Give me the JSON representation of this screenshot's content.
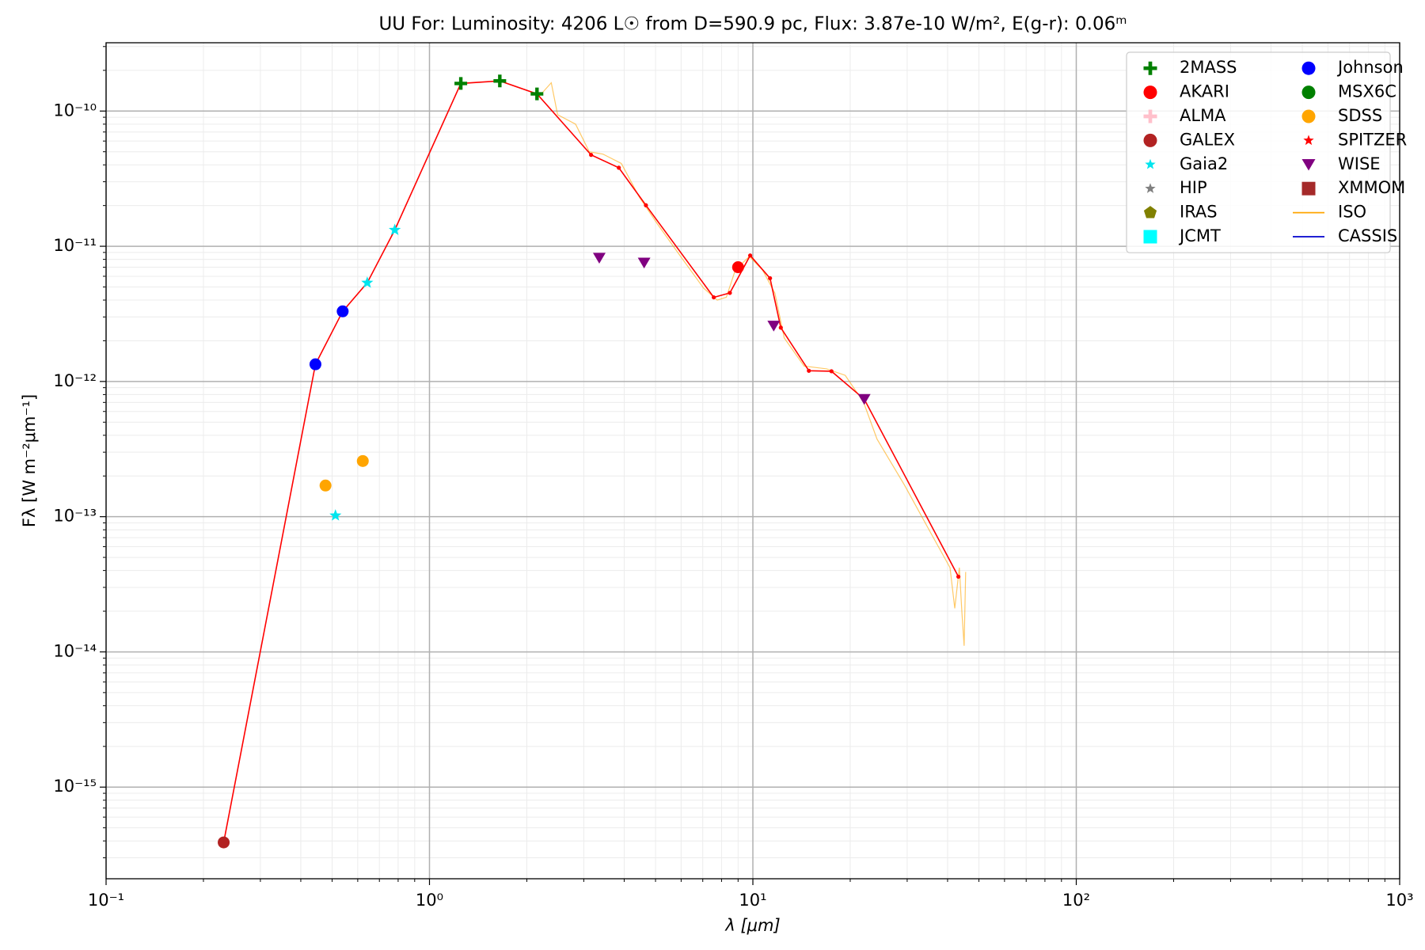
{
  "chart_data": {
    "type": "scatter",
    "title": "UU For:  Luminosity: 4206 L☉ from D=590.9 pc, Flux: 3.87e-10 W/m², E(g-r): 0.06ᵐ",
    "xlabel": "λ [μm]",
    "ylabel": "Fλ [W m⁻²μm⁻¹]",
    "xscale": "log",
    "yscale": "log",
    "xlim": [
      0.1,
      1000
    ],
    "ylim": [
      2.1e-16,
      3.2e-10
    ],
    "xticks": [
      {
        "value": 0.1,
        "label": "10⁻¹"
      },
      {
        "value": 1,
        "label": "10⁰"
      },
      {
        "value": 10,
        "label": "10¹"
      },
      {
        "value": 100,
        "label": "10²"
      },
      {
        "value": 1000,
        "label": "10³"
      }
    ],
    "yticks": [
      {
        "value": 1e-15,
        "label": "10⁻¹⁵"
      },
      {
        "value": 1e-14,
        "label": "10⁻¹⁴"
      },
      {
        "value": 1e-13,
        "label": "10⁻¹³"
      },
      {
        "value": 1e-12,
        "label": "10⁻¹²"
      },
      {
        "value": 1e-11,
        "label": "10⁻¹¹"
      },
      {
        "value": 1e-10,
        "label": "10⁻¹⁰"
      }
    ],
    "grid": true,
    "legend_position": "upper right",
    "series": [
      {
        "color": "#ffa500",
        "marker": "line",
        "name": "ISO",
        "x": [
          2.18,
          2.38,
          2.49,
          2.83,
          3.12,
          3.44,
          3.92,
          4.46,
          5.08,
          5.98,
          7.04,
          7.76,
          8.28,
          8.83,
          9.75,
          10.7,
          11.7,
          12.5,
          14.4,
          16.9,
          19.3,
          22.0,
          24.2,
          29.4,
          35.8,
          40.7,
          42.1,
          43.5,
          44.3,
          45.0,
          45.5
        ],
        "values": [
          1.28e-10,
          1.62e-10,
          9.4e-11,
          8e-11,
          5e-11,
          4.8e-11,
          4.1e-11,
          2.3e-11,
          1.45e-11,
          8.4e-12,
          4.9e-12,
          4e-12,
          4.2e-12,
          6.7e-12,
          8.4e-12,
          6.7e-12,
          4.5e-12,
          2.1e-12,
          1.3e-12,
          1.24e-12,
          1.11e-12,
          7e-13,
          3.75e-13,
          1.72e-13,
          7.3e-14,
          4.2e-14,
          2.1e-14,
          4.2e-14,
          1.95e-14,
          1.11e-14,
          3.9e-14
        ]
      },
      {
        "color": "#0000cd",
        "marker": "line",
        "name": "CASSIS",
        "x": [],
        "values": []
      },
      {
        "color": "#ff0000",
        "marker": "dotline",
        "x": [
          0.231,
          0.444,
          0.539,
          0.642,
          0.781,
          1.25,
          1.65,
          2.15,
          3.16,
          3.85,
          4.67,
          7.57,
          8.49,
          9.81,
          11.3,
          12.2,
          14.9,
          17.5,
          22.1,
          43.2
        ],
        "values": [
          3.9e-16,
          1.34e-12,
          3.3e-12,
          5.37e-12,
          1.32e-11,
          1.6e-10,
          1.67e-10,
          1.34e-10,
          4.74e-11,
          3.81e-11,
          2.01e-11,
          4.19e-12,
          4.52e-12,
          8.55e-12,
          5.8e-12,
          2.5e-12,
          1.2e-12,
          1.19e-12,
          7.4e-13,
          3.6e-14
        ]
      },
      {
        "name": "2MASS",
        "color": "#008000",
        "marker": "plus",
        "x": [
          1.25,
          1.65,
          2.15
        ],
        "values": [
          1.6e-10,
          1.67e-10,
          1.34e-10
        ]
      },
      {
        "name": "AKARI",
        "color": "#ff0000",
        "marker": "circle",
        "x": [
          9.0
        ],
        "values": [
          7e-12
        ]
      },
      {
        "name": "ALMA",
        "color": "#ffc0cb",
        "marker": "plus",
        "x": [],
        "values": []
      },
      {
        "name": "GALEX",
        "color": "#b22222",
        "marker": "circle",
        "x": [
          0.231
        ],
        "values": [
          3.9e-16
        ]
      },
      {
        "name": "Gaia2",
        "color": "#00e5ee",
        "marker": "star",
        "x": [
          0.512,
          0.642,
          0.781
        ],
        "values": [
          1.02e-13,
          5.37e-12,
          1.32e-11
        ]
      },
      {
        "name": "HIP",
        "color": "#808080",
        "marker": "star",
        "x": [],
        "values": []
      },
      {
        "name": "IRAS",
        "color": "#808000",
        "marker": "pentagon",
        "x": [],
        "values": []
      },
      {
        "name": "JCMT",
        "color": "#00ffff",
        "marker": "square",
        "x": [],
        "values": []
      },
      {
        "name": "Johnson",
        "color": "#0000ff",
        "marker": "circle",
        "x": [
          0.444,
          0.539
        ],
        "values": [
          1.34e-12,
          3.3e-12
        ]
      },
      {
        "name": "MSX6C",
        "color": "#008000",
        "marker": "circle",
        "x": [],
        "values": []
      },
      {
        "name": "SDSS",
        "color": "#ffa500",
        "marker": "circle",
        "x": [
          0.477,
          0.622
        ],
        "values": [
          1.7e-13,
          2.58e-13
        ]
      },
      {
        "name": "SPITZER",
        "color": "#ff0000",
        "marker": "star",
        "x": [],
        "values": []
      },
      {
        "name": "WISE",
        "color": "#800080",
        "marker": "tri",
        "x": [
          3.35,
          4.61,
          11.6,
          22.1
        ],
        "values": [
          8.2e-12,
          7.55e-12,
          2.58e-12,
          7.4e-13
        ]
      },
      {
        "name": "XMMOM",
        "color": "#a52a2a",
        "marker": "square",
        "x": [],
        "values": []
      }
    ],
    "legend_order": [
      3,
      4,
      5,
      6,
      7,
      8,
      9,
      10,
      11,
      12,
      13,
      14,
      15,
      16,
      0,
      1
    ]
  }
}
